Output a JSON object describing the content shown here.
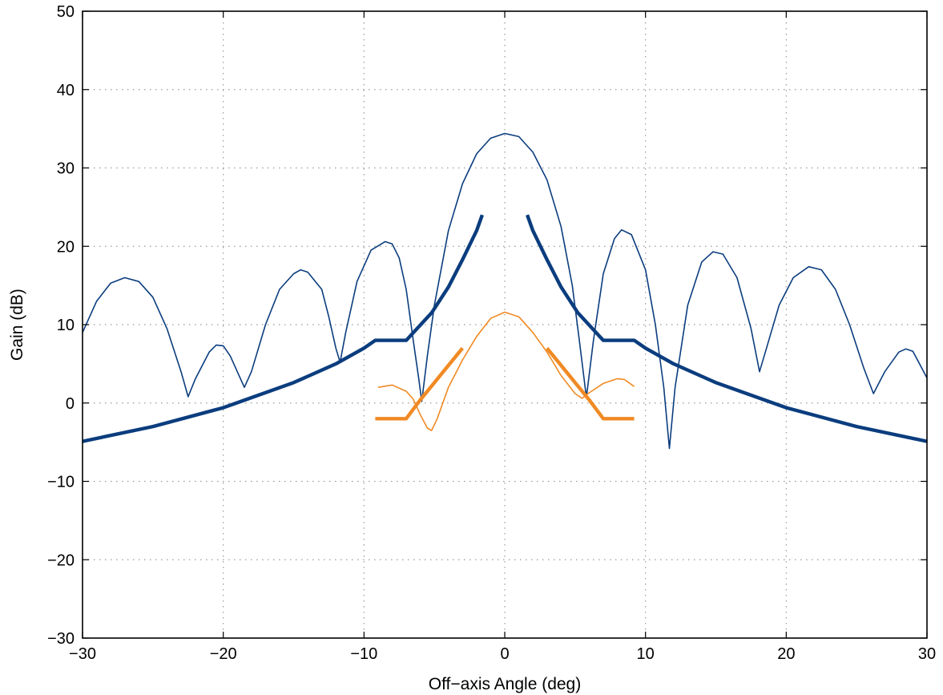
{
  "chart_data": {
    "type": "line",
    "title": "",
    "xlabel": "Off−axis Angle (deg)",
    "ylabel": "Gain (dB)",
    "xlim": [
      -30,
      30
    ],
    "ylim": [
      -30,
      50
    ],
    "xticks": [
      -30,
      -20,
      -10,
      0,
      10,
      20,
      30
    ],
    "yticks": [
      -30,
      -20,
      -10,
      0,
      10,
      20,
      30,
      40,
      50
    ],
    "grid": true,
    "legend": "none",
    "colors": {
      "navy": "#0b3d7e",
      "orange": "#f08a24"
    },
    "series": [
      {
        "color": "#0b3d7e",
        "width": 1.6,
        "segments": [
          [
            [
              -30,
              9.0
            ],
            [
              -29,
              13.0
            ],
            [
              -28,
              15.3
            ],
            [
              -27,
              16.0
            ],
            [
              -26,
              15.5
            ],
            [
              -25,
              13.5
            ],
            [
              -24,
              9.5
            ],
            [
              -23,
              4.0
            ],
            [
              -22.5,
              0.8
            ],
            [
              -22,
              3.0
            ],
            [
              -21,
              6.5
            ],
            [
              -20.5,
              7.4
            ],
            [
              -20,
              7.3
            ],
            [
              -19.5,
              6.0
            ],
            [
              -19,
              4.0
            ],
            [
              -18.5,
              2.0
            ],
            [
              -18,
              4.0
            ],
            [
              -17,
              10.0
            ],
            [
              -16,
              14.5
            ],
            [
              -15,
              16.5
            ],
            [
              -14.5,
              17.0
            ],
            [
              -14,
              16.7
            ],
            [
              -13,
              14.5
            ],
            [
              -12.5,
              11.0
            ],
            [
              -12,
              7.0
            ],
            [
              -11.7,
              5.2
            ],
            [
              -11.3,
              9.0
            ],
            [
              -10.5,
              15.5
            ],
            [
              -9.5,
              19.5
            ],
            [
              -8.5,
              20.6
            ],
            [
              -8,
              20.3
            ],
            [
              -7.5,
              18.5
            ],
            [
              -7,
              14.5
            ],
            [
              -6.5,
              8.0
            ],
            [
              -6.1,
              3.0
            ],
            [
              -5.9,
              0.2
            ],
            [
              -5.5,
              6.0
            ],
            [
              -5,
              12.5
            ],
            [
              -4,
              22.0
            ],
            [
              -3,
              28.0
            ],
            [
              -2,
              31.8
            ],
            [
              -1,
              33.8
            ],
            [
              0,
              34.4
            ],
            [
              1,
              34.0
            ],
            [
              2,
              32.0
            ],
            [
              3,
              28.5
            ],
            [
              4,
              22.5
            ],
            [
              4.8,
              15.0
            ],
            [
              5.3,
              8.0
            ],
            [
              5.8,
              0.7
            ],
            [
              6.3,
              8.0
            ],
            [
              7,
              16.5
            ],
            [
              7.8,
              21.0
            ],
            [
              8.3,
              22.1
            ],
            [
              9,
              21.5
            ],
            [
              10,
              17.0
            ],
            [
              10.7,
              10.0
            ],
            [
              11.3,
              2.0
            ],
            [
              11.7,
              -5.8
            ],
            [
              12.1,
              2.0
            ],
            [
              13,
              12.5
            ],
            [
              14,
              18.0
            ],
            [
              14.8,
              19.3
            ],
            [
              15.5,
              19.0
            ],
            [
              16.5,
              16.0
            ],
            [
              17.5,
              9.5
            ],
            [
              18.1,
              4.0
            ],
            [
              18.6,
              7.0
            ],
            [
              19.5,
              12.5
            ],
            [
              20.5,
              16.0
            ],
            [
              21.6,
              17.4
            ],
            [
              22.5,
              17.0
            ],
            [
              23.5,
              14.5
            ],
            [
              24.5,
              10.0
            ],
            [
              25.5,
              4.5
            ],
            [
              26.2,
              1.2
            ],
            [
              27,
              4.0
            ],
            [
              28,
              6.5
            ],
            [
              28.5,
              6.9
            ],
            [
              29,
              6.6
            ],
            [
              30,
              3.2
            ]
          ]
        ]
      },
      {
        "color": "#0b3d7e",
        "width": 4.4,
        "segments": [
          [
            [
              -30,
              -4.9
            ],
            [
              -25,
              -3.0
            ],
            [
              -20,
              -0.6
            ],
            [
              -15,
              2.6
            ],
            [
              -12,
              5.0
            ],
            [
              -10,
              7.0
            ],
            [
              -9.2,
              8.0
            ],
            [
              -7,
              8.0
            ],
            [
              -5.2,
              11.5
            ],
            [
              -4,
              14.8
            ],
            [
              -3,
              18.3
            ],
            [
              -2,
              22.0
            ],
            [
              -1.6,
              24.0
            ]
          ],
          [
            [
              1.6,
              24.0
            ],
            [
              2,
              22.0
            ],
            [
              3,
              18.3
            ],
            [
              4,
              14.8
            ],
            [
              5.2,
              11.5
            ],
            [
              7,
              8.0
            ],
            [
              9.2,
              8.0
            ],
            [
              10,
              7.0
            ],
            [
              12,
              5.0
            ],
            [
              15,
              2.6
            ],
            [
              20,
              -0.6
            ],
            [
              25,
              -3.0
            ],
            [
              30,
              -4.9
            ]
          ]
        ]
      },
      {
        "color": "#f08a24",
        "width": 1.6,
        "segments": [
          [
            [
              -9,
              2.0
            ],
            [
              -8,
              2.3
            ],
            [
              -7,
              1.5
            ],
            [
              -6.5,
              0.5
            ],
            [
              -6,
              -1.5
            ],
            [
              -5.5,
              -3.2
            ],
            [
              -5.2,
              -3.5
            ],
            [
              -4.8,
              -2.0
            ],
            [
              -4,
              2.0
            ],
            [
              -3,
              5.5
            ],
            [
              -2,
              8.5
            ],
            [
              -1,
              10.8
            ],
            [
              0,
              11.6
            ],
            [
              1,
              11.0
            ],
            [
              2,
              9.0
            ],
            [
              3,
              6.5
            ],
            [
              4,
              3.5
            ],
            [
              5,
              1.2
            ],
            [
              5.5,
              0.6
            ],
            [
              6,
              1.3
            ],
            [
              7,
              2.5
            ],
            [
              8,
              3.1
            ],
            [
              8.5,
              3.0
            ],
            [
              9.2,
              2.1
            ]
          ]
        ]
      },
      {
        "color": "#f08a24",
        "width": 4.4,
        "segments": [
          [
            [
              -9.2,
              -2.0
            ],
            [
              -7,
              -2.0
            ],
            [
              -6,
              0.4
            ],
            [
              -5,
              2.6
            ],
            [
              -4,
              4.8
            ],
            [
              -3,
              7.0
            ]
          ],
          [
            [
              3,
              7.0
            ],
            [
              4,
              4.8
            ],
            [
              5,
              2.6
            ],
            [
              6,
              0.4
            ],
            [
              7,
              -2.0
            ],
            [
              9.2,
              -2.0
            ]
          ]
        ]
      }
    ]
  }
}
